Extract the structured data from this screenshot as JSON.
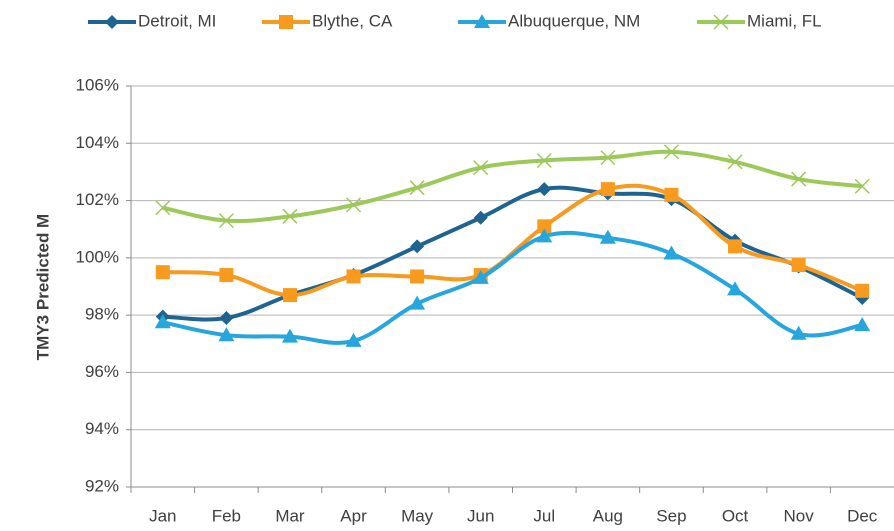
{
  "chart_data": {
    "type": "line",
    "y_label": "TMY3 Predicted M",
    "categories": [
      "Jan",
      "Feb",
      "Mar",
      "Apr",
      "May",
      "Jun",
      "Jul",
      "Aug",
      "Sep",
      "Oct",
      "Nov",
      "Dec"
    ],
    "series": [
      {
        "name": "Detroit, MI",
        "color": "#1f6391",
        "marker": "diamond",
        "values": [
          97.95,
          97.9,
          98.7,
          99.4,
          100.4,
          101.4,
          102.4,
          102.25,
          102.05,
          100.6,
          99.7,
          98.6
        ]
      },
      {
        "name": "Blythe, CA",
        "color": "#f79a1e",
        "marker": "square",
        "values": [
          99.5,
          99.4,
          98.7,
          99.35,
          99.35,
          99.4,
          101.1,
          102.4,
          102.2,
          100.4,
          99.75,
          98.85
        ]
      },
      {
        "name": "Albuquerque, NM",
        "color": "#27a6de",
        "marker": "triangle",
        "values": [
          97.75,
          97.3,
          97.25,
          97.1,
          98.4,
          99.3,
          100.75,
          100.7,
          100.15,
          98.9,
          97.35,
          97.65
        ]
      },
      {
        "name": "Miami, FL",
        "color": "#9dc85a",
        "marker": "x",
        "values": [
          101.75,
          101.3,
          101.45,
          101.85,
          102.45,
          103.15,
          103.4,
          103.5,
          103.7,
          103.35,
          102.75,
          102.5
        ]
      }
    ],
    "ylim": [
      92,
      106
    ],
    "yticks": [
      {
        "value": 92,
        "label": "92%"
      },
      {
        "value": 94,
        "label": "94%"
      },
      {
        "value": 96,
        "label": "96%"
      },
      {
        "value": 98,
        "label": "98%"
      },
      {
        "value": 100,
        "label": "100%"
      },
      {
        "value": 102,
        "label": "102%"
      },
      {
        "value": 104,
        "label": "104%"
      },
      {
        "value": 106,
        "label": "106%"
      }
    ],
    "grid": true,
    "legend": "top"
  }
}
